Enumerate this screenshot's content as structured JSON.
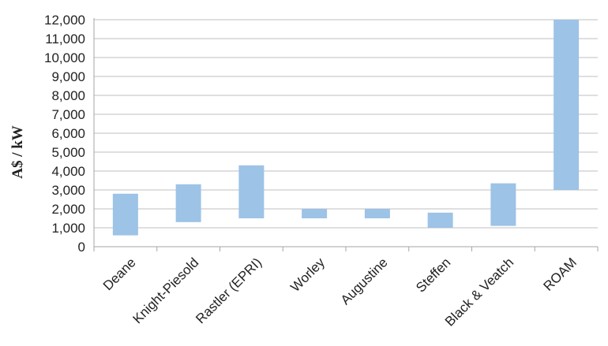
{
  "chart_data": {
    "type": "bar",
    "subtype": "floating-range",
    "ylabel": "A$ / kW",
    "xlabel": "",
    "ylim": [
      0,
      12000
    ],
    "yticks": [
      0,
      1000,
      2000,
      3000,
      4000,
      5000,
      6000,
      7000,
      8000,
      9000,
      10000,
      11000,
      12000
    ],
    "ytick_labels": [
      "0",
      "1,000",
      "2,000",
      "3,000",
      "4,000",
      "5,000",
      "6,000",
      "7,000",
      "8,000",
      "9,000",
      "10,000",
      "11,000",
      "12,000"
    ],
    "categories": [
      "Deane",
      "Knight-Piesold",
      "Rastler (EPRI)",
      "Worley",
      "Augustine",
      "Steffen",
      "Black & Veatch",
      "ROAM"
    ],
    "low": [
      600,
      1300,
      1500,
      1500,
      1500,
      1000,
      1100,
      3000
    ],
    "high": [
      2800,
      3300,
      4300,
      2000,
      2000,
      1800,
      3350,
      12000
    ],
    "grid": true,
    "legend": "none",
    "bar_color": "#9DC3E6",
    "grid_color": "#BFBFBF",
    "axis_color": "#A6A6A6"
  }
}
